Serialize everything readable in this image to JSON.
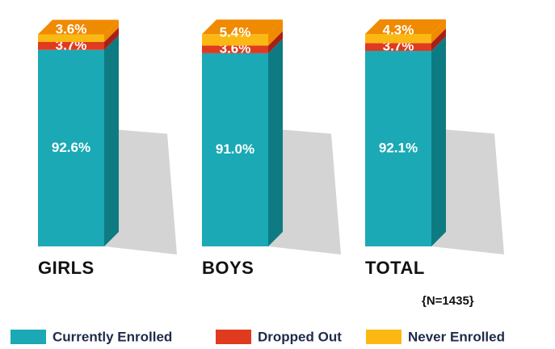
{
  "chart_data": {
    "type": "bar",
    "stacked": true,
    "categories": [
      "GIRLS",
      "BOYS",
      "TOTAL"
    ],
    "series": [
      {
        "name": "Currently Enrolled",
        "color": "#1aa9b5",
        "side": "#0e7a82",
        "values": [
          92.6,
          91.0,
          92.1
        ],
        "value_labels": [
          "92.6%",
          "91.0%",
          "92.1%"
        ]
      },
      {
        "name": "Dropped Out",
        "color": "#e03a1f",
        "side": "#a82015",
        "values": [
          3.7,
          3.6,
          3.7
        ],
        "value_labels": [
          "3.7%",
          "3.6%",
          "3.7%"
        ]
      },
      {
        "name": "Never Enrolled",
        "color": "#fbb813",
        "side": "#f08a00",
        "values": [
          3.6,
          5.4,
          4.3
        ],
        "value_labels": [
          "3.6%",
          "5.4%",
          "4.3%"
        ]
      }
    ],
    "annotation": "{N=1435}",
    "legend": "bottom"
  }
}
